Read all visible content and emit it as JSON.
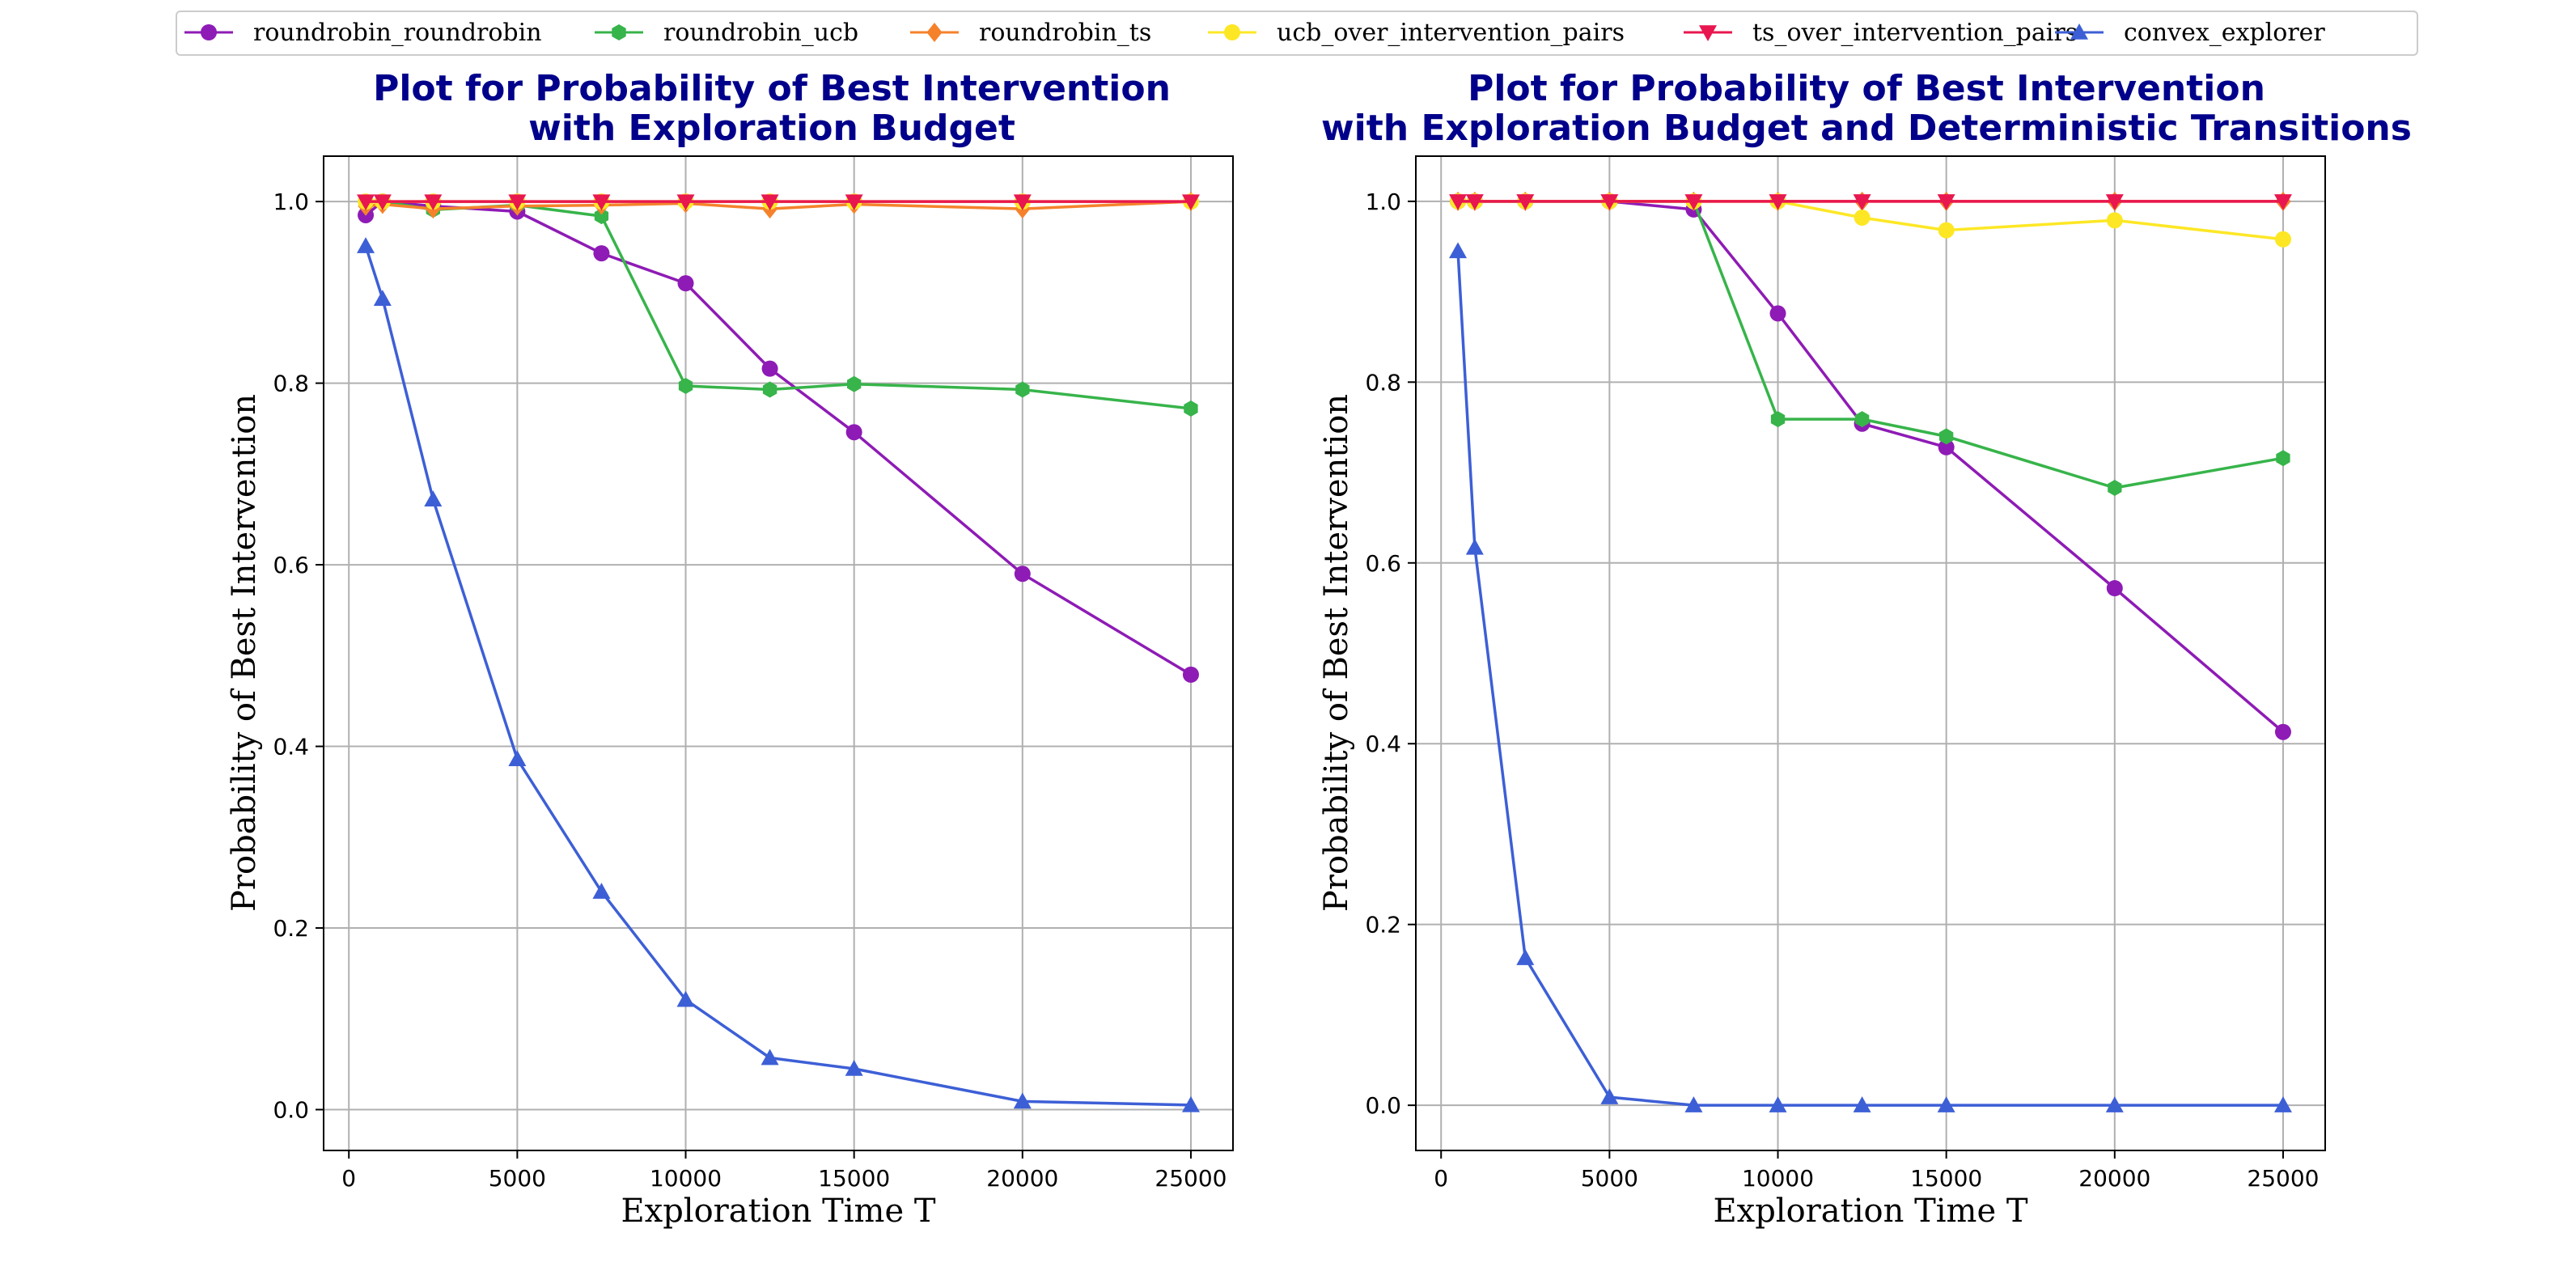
{
  "legend": [
    {
      "name": "roundrobin_roundrobin",
      "color": "#8e1bb5",
      "marker": "circle"
    },
    {
      "name": "roundrobin_ucb",
      "color": "#37b44a",
      "marker": "hexagon"
    },
    {
      "name": "roundrobin_ts",
      "color": "#f5822b",
      "marker": "diamond"
    },
    {
      "name": "ucb_over_intervention_pairs",
      "color": "#fde725",
      "marker": "circle"
    },
    {
      "name": "ts_over_intervention_pairs",
      "color": "#e8174f",
      "marker": "triangle-down"
    },
    {
      "name": "convex_explorer",
      "color": "#3d5fd6",
      "marker": "triangle-up"
    }
  ],
  "chart_data": [
    {
      "type": "line",
      "title_line1": "Plot for Probability of Best Intervention",
      "title_line2": "with Exploration Budget",
      "xlabel": "Exploration Time T",
      "ylabel": "Probability of Best Intervention",
      "xlim": [
        -750,
        26250
      ],
      "ylim": [
        -0.045,
        1.05
      ],
      "xticks": [
        0,
        5000,
        10000,
        15000,
        20000,
        25000
      ],
      "yticks": [
        0.0,
        0.2,
        0.4,
        0.6,
        0.8,
        1.0
      ],
      "xtick_labels": [
        "0",
        "5000",
        "10000",
        "15000",
        "20000",
        "25000"
      ],
      "ytick_labels": [
        "0.0",
        "0.2",
        "0.4",
        "0.6",
        "0.8",
        "1.0"
      ],
      "grid": true,
      "x": [
        500,
        1000,
        2500,
        5000,
        7500,
        10000,
        12500,
        15000,
        20000,
        25000
      ],
      "series": [
        {
          "name": "roundrobin_roundrobin",
          "values": [
            0.985,
            1.0,
            0.995,
            0.989,
            0.943,
            0.91,
            0.816,
            0.746,
            0.59,
            0.479
          ]
        },
        {
          "name": "roundrobin_ucb",
          "values": [
            1.0,
            1.0,
            0.991,
            0.996,
            0.984,
            0.797,
            0.793,
            0.799,
            0.793,
            0.772
          ]
        },
        {
          "name": "roundrobin_ts",
          "values": [
            0.995,
            0.997,
            0.992,
            0.995,
            0.996,
            0.998,
            0.992,
            0.997,
            0.992,
            1.0
          ]
        },
        {
          "name": "ucb_over_intervention_pairs",
          "values": [
            1.0,
            1.0,
            1.0,
            1.0,
            1.0,
            1.0,
            1.0,
            1.0,
            1.0,
            1.0
          ]
        },
        {
          "name": "ts_over_intervention_pairs",
          "values": [
            1.0,
            1.0,
            1.0,
            1.0,
            1.0,
            1.0,
            1.0,
            1.0,
            1.0,
            1.0
          ]
        },
        {
          "name": "convex_explorer",
          "values": [
            0.951,
            0.893,
            0.672,
            0.386,
            0.24,
            0.121,
            0.057,
            0.045,
            0.009,
            0.005
          ]
        }
      ]
    },
    {
      "type": "line",
      "title_line1": "Plot for Probability of Best Intervention",
      "title_line2": "with Exploration Budget and Deterministic Transitions",
      "xlabel": "Exploration Time T",
      "ylabel": "Probability of Best Intervention",
      "xlim": [
        -750,
        26250
      ],
      "ylim": [
        -0.05,
        1.05
      ],
      "xticks": [
        0,
        5000,
        10000,
        15000,
        20000,
        25000
      ],
      "yticks": [
        0.0,
        0.2,
        0.4,
        0.6,
        0.8,
        1.0
      ],
      "xtick_labels": [
        "0",
        "5000",
        "10000",
        "15000",
        "20000",
        "25000"
      ],
      "ytick_labels": [
        "0.0",
        "0.2",
        "0.4",
        "0.6",
        "0.8",
        "1.0"
      ],
      "grid": true,
      "x": [
        500,
        1000,
        2500,
        5000,
        7500,
        10000,
        12500,
        15000,
        20000,
        25000
      ],
      "series": [
        {
          "name": "roundrobin_roundrobin",
          "values": [
            1.0,
            1.0,
            1.0,
            1.0,
            0.991,
            0.876,
            0.754,
            0.728,
            0.572,
            0.413
          ]
        },
        {
          "name": "roundrobin_ucb",
          "values": [
            1.0,
            1.0,
            1.0,
            1.0,
            1.0,
            0.759,
            0.759,
            0.74,
            0.683,
            0.716
          ]
        },
        {
          "name": "roundrobin_ts",
          "values": [
            1.0,
            1.0,
            1.0,
            1.0,
            1.0,
            1.0,
            1.0,
            1.0,
            1.0,
            1.0
          ]
        },
        {
          "name": "ucb_over_intervention_pairs",
          "values": [
            1.0,
            1.0,
            1.0,
            1.0,
            1.0,
            1.0,
            0.982,
            0.968,
            0.979,
            0.958
          ]
        },
        {
          "name": "ts_over_intervention_pairs",
          "values": [
            1.0,
            1.0,
            1.0,
            1.0,
            1.0,
            1.0,
            1.0,
            1.0,
            1.0,
            1.0
          ]
        },
        {
          "name": "convex_explorer",
          "values": [
            0.945,
            0.617,
            0.163,
            0.009,
            0.0,
            0.0,
            0.0,
            0.0,
            0.0,
            0.0
          ]
        }
      ]
    }
  ]
}
